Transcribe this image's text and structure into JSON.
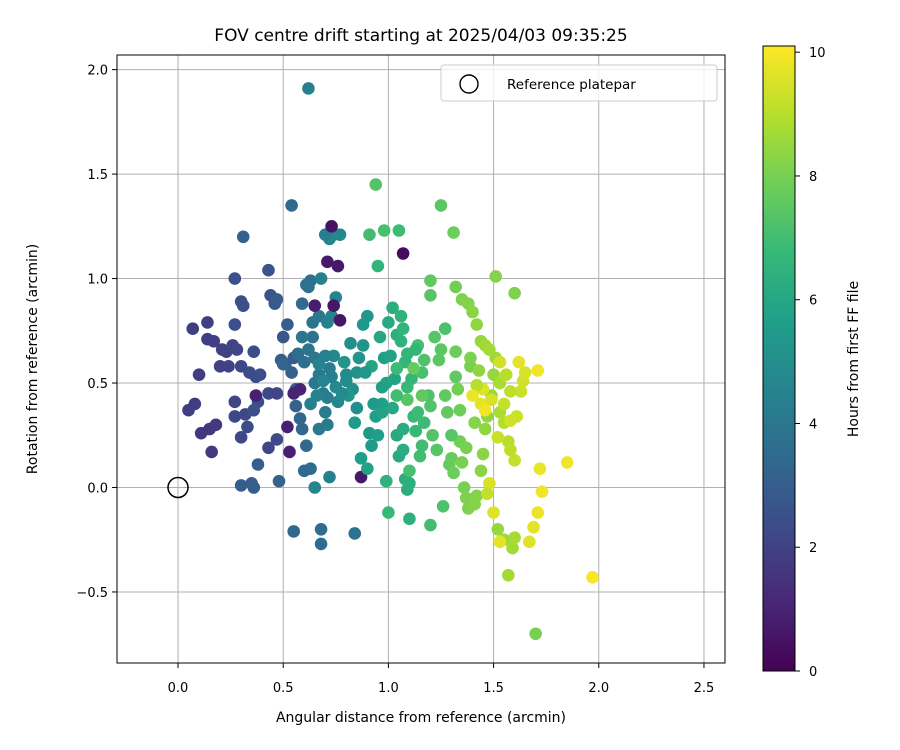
{
  "chart_data": {
    "type": "scatter",
    "title": "FOV centre drift starting at 2025/04/03 09:35:25",
    "xlabel": "Angular distance from reference (arcmin)",
    "ylabel": "Rotation from reference (arcmin)",
    "xlim": [
      -0.29,
      2.6
    ],
    "ylim": [
      -0.84,
      2.07
    ],
    "x_ticks": [
      0.0,
      0.5,
      1.0,
      1.5,
      2.0,
      2.5
    ],
    "x_tick_labels": [
      "0.0",
      "0.5",
      "1.0",
      "1.5",
      "2.0",
      "2.5"
    ],
    "y_ticks": [
      -0.5,
      0.0,
      0.5,
      1.0,
      1.5,
      2.0
    ],
    "y_tick_labels": [
      "−0.5",
      "0.0",
      "0.5",
      "1.0",
      "1.5",
      "2.0"
    ],
    "grid": true,
    "legend": {
      "position": "top-right",
      "entries": [
        "Reference platepar"
      ]
    },
    "reference_point": {
      "x": 0.0,
      "y": 0.0,
      "marker": "open-circle"
    },
    "colorbar": {
      "label": "Hours from first FF file",
      "range": [
        0,
        10.1
      ],
      "ticks": [
        0,
        2,
        4,
        6,
        8,
        10
      ],
      "tick_labels": [
        "0",
        "2",
        "4",
        "6",
        "8",
        "10"
      ],
      "colormap": [
        "#440154",
        "#482878",
        "#3e4989",
        "#31688e",
        "#26828e",
        "#1f9e89",
        "#35b779",
        "#6ece58",
        "#b5de2b",
        "#fde725"
      ]
    },
    "points": [
      [
        0.11,
        0.26,
        1.6
      ],
      [
        0.15,
        0.28,
        1.6
      ],
      [
        0.18,
        0.3,
        1.7
      ],
      [
        0.16,
        0.17,
        1.7
      ],
      [
        0.08,
        0.4,
        1.8
      ],
      [
        0.05,
        0.37,
        1.8
      ],
      [
        0.1,
        0.54,
        1.8
      ],
      [
        0.14,
        0.71,
        1.9
      ],
      [
        0.17,
        0.7,
        1.9
      ],
      [
        0.14,
        0.79,
        1.9
      ],
      [
        0.07,
        0.76,
        1.9
      ],
      [
        0.2,
        0.58,
        2.0
      ],
      [
        0.21,
        0.66,
        2.0
      ],
      [
        0.24,
        0.58,
        2.0
      ],
      [
        0.23,
        0.65,
        2.0
      ],
      [
        0.26,
        0.68,
        2.1
      ],
      [
        0.28,
        0.66,
        2.1
      ],
      [
        0.3,
        0.58,
        2.2
      ],
      [
        0.27,
        0.41,
        2.1
      ],
      [
        0.27,
        0.34,
        2.2
      ],
      [
        0.3,
        0.24,
        2.2
      ],
      [
        0.32,
        0.35,
        2.2
      ],
      [
        0.33,
        0.29,
        2.3
      ],
      [
        0.34,
        0.55,
        2.3
      ],
      [
        0.37,
        0.53,
        2.3
      ],
      [
        0.36,
        0.65,
        2.4
      ],
      [
        0.39,
        0.54,
        2.4
      ],
      [
        0.38,
        0.41,
        2.4
      ],
      [
        0.36,
        0.37,
        2.5
      ],
      [
        0.3,
        0.89,
        2.5
      ],
      [
        0.31,
        0.87,
        2.5
      ],
      [
        0.27,
        0.78,
        2.5
      ],
      [
        0.27,
        1.0,
        2.5
      ],
      [
        0.43,
        1.04,
        2.6
      ],
      [
        0.44,
        0.92,
        2.6
      ],
      [
        0.46,
        0.88,
        2.8
      ],
      [
        0.47,
        0.9,
        2.9
      ],
      [
        0.43,
        0.45,
        2.2
      ],
      [
        0.47,
        0.45,
        2.1
      ],
      [
        0.43,
        0.19,
        2.1
      ],
      [
        0.47,
        0.23,
        2.3
      ],
      [
        0.3,
        0.01,
        3.0
      ],
      [
        0.35,
        0.02,
        3.0
      ],
      [
        0.36,
        0.0,
        3.0
      ],
      [
        0.38,
        0.11,
        3.0
      ],
      [
        0.48,
        0.03,
        3.2
      ],
      [
        0.5,
        0.72,
        2.8
      ],
      [
        0.52,
        0.78,
        3.0
      ],
      [
        0.51,
        0.59,
        2.9
      ],
      [
        0.49,
        0.61,
        2.9
      ],
      [
        0.55,
        0.62,
        3.0
      ],
      [
        0.56,
        0.47,
        3.0
      ],
      [
        0.54,
        0.55,
        3.1
      ],
      [
        0.56,
        0.39,
        3.1
      ],
      [
        0.5,
        0.59,
        3.3
      ],
      [
        0.58,
        0.33,
        3.3
      ],
      [
        0.59,
        0.28,
        3.4
      ],
      [
        0.61,
        0.2,
        3.4
      ],
      [
        0.6,
        0.08,
        3.5
      ],
      [
        0.63,
        0.09,
        3.5
      ],
      [
        0.59,
        0.88,
        3.5
      ],
      [
        0.61,
        0.97,
        3.7
      ],
      [
        0.63,
        0.99,
        3.7
      ],
      [
        0.62,
        0.96,
        3.8
      ],
      [
        0.64,
        0.72,
        3.8
      ],
      [
        0.64,
        0.79,
        3.9
      ],
      [
        0.67,
        0.82,
        4.0
      ],
      [
        0.65,
        0.62,
        4.0
      ],
      [
        0.65,
        0.5,
        4.0
      ],
      [
        0.67,
        0.54,
        4.1
      ],
      [
        0.69,
        0.45,
        4.2
      ],
      [
        0.67,
        0.28,
        4.1
      ],
      [
        0.71,
        0.3,
        4.2
      ],
      [
        0.7,
        0.36,
        4.2
      ],
      [
        0.71,
        0.43,
        4.3
      ],
      [
        0.72,
        0.57,
        4.3
      ],
      [
        0.73,
        0.53,
        4.4
      ],
      [
        0.71,
        0.79,
        4.4
      ],
      [
        0.73,
        0.82,
        4.5
      ],
      [
        0.75,
        0.91,
        4.6
      ],
      [
        0.72,
        1.19,
        4.6
      ],
      [
        0.74,
        1.21,
        4.7
      ],
      [
        0.77,
        1.21,
        4.7
      ],
      [
        0.7,
        1.21,
        4.3
      ],
      [
        0.54,
        1.35,
        3.5
      ],
      [
        0.62,
        1.91,
        4.4
      ],
      [
        0.68,
        1.0,
        4.4
      ],
      [
        0.72,
        0.05,
        4.4
      ],
      [
        0.55,
        -0.21,
        3.4
      ],
      [
        0.68,
        -0.2,
        3.6
      ],
      [
        0.68,
        -0.27,
        3.6
      ],
      [
        0.84,
        -0.22,
        3.8
      ],
      [
        0.65,
        0.0,
        4.6
      ],
      [
        0.31,
        1.2,
        3.2
      ],
      [
        0.52,
        0.29,
        0.9
      ],
      [
        0.55,
        0.45,
        1.0
      ],
      [
        0.58,
        0.47,
        1.0
      ],
      [
        0.53,
        0.17,
        0.9
      ],
      [
        0.65,
        0.87,
        0.8
      ],
      [
        0.74,
        0.87,
        0.6
      ],
      [
        0.77,
        0.8,
        0.6
      ],
      [
        0.73,
        1.25,
        0.5
      ],
      [
        0.76,
        1.06,
        0.7
      ],
      [
        0.71,
        1.08,
        0.7
      ],
      [
        0.87,
        0.05,
        0.7
      ],
      [
        1.07,
        1.12,
        0.3
      ],
      [
        0.37,
        0.44,
        0.9
      ],
      [
        0.59,
        0.72,
        4.0
      ],
      [
        0.8,
        0.51,
        4.9
      ],
      [
        0.83,
        0.47,
        5.0
      ],
      [
        0.85,
        0.38,
        5.0
      ],
      [
        0.85,
        0.55,
        5.1
      ],
      [
        0.86,
        0.62,
        5.2
      ],
      [
        0.88,
        0.68,
        5.2
      ],
      [
        0.88,
        0.78,
        5.3
      ],
      [
        0.9,
        0.82,
        5.3
      ],
      [
        0.91,
        0.26,
        5.4
      ],
      [
        0.92,
        0.2,
        5.5
      ],
      [
        0.95,
        0.25,
        5.6
      ],
      [
        0.94,
        0.34,
        5.6
      ],
      [
        0.97,
        0.4,
        5.7
      ],
      [
        0.98,
        0.62,
        5.7
      ],
      [
        0.99,
        0.5,
        5.8
      ],
      [
        1.01,
        0.63,
        5.8
      ],
      [
        1.03,
        0.52,
        5.9
      ],
      [
        1.02,
        0.38,
        6.0
      ],
      [
        1.04,
        0.25,
        6.1
      ],
      [
        1.05,
        0.15,
        6.1
      ],
      [
        1.07,
        0.18,
        6.2
      ],
      [
        1.07,
        0.28,
        6.2
      ],
      [
        1.08,
        0.04,
        6.3
      ],
      [
        1.09,
        -0.01,
        6.3
      ],
      [
        1.1,
        0.02,
        6.4
      ],
      [
        1.1,
        -0.15,
        6.4
      ],
      [
        0.99,
        0.03,
        6.5
      ],
      [
        1.04,
        0.73,
        6.4
      ],
      [
        1.06,
        0.7,
        6.5
      ],
      [
        1.07,
        0.76,
        6.6
      ],
      [
        1.08,
        0.6,
        6.6
      ],
      [
        1.09,
        0.64,
        6.7
      ],
      [
        1.11,
        0.52,
        6.7
      ],
      [
        1.12,
        0.34,
        6.8
      ],
      [
        1.13,
        0.27,
        6.8
      ],
      [
        1.14,
        0.36,
        6.9
      ],
      [
        1.15,
        0.15,
        7.0
      ],
      [
        1.16,
        0.2,
        7.0
      ],
      [
        1.14,
        0.68,
        7.1
      ],
      [
        1.16,
        0.55,
        7.1
      ],
      [
        1.17,
        0.61,
        7.2
      ],
      [
        1.19,
        0.44,
        7.2
      ],
      [
        1.2,
        0.39,
        7.3
      ],
      [
        1.21,
        0.25,
        7.3
      ],
      [
        1.22,
        0.72,
        7.4
      ],
      [
        1.23,
        0.18,
        7.4
      ],
      [
        1.24,
        0.61,
        7.5
      ],
      [
        1.25,
        0.66,
        7.5
      ],
      [
        1.27,
        0.44,
        7.6
      ],
      [
        1.28,
        0.36,
        7.6
      ],
      [
        1.29,
        0.11,
        7.7
      ],
      [
        1.3,
        0.14,
        7.7
      ],
      [
        1.31,
        0.07,
        7.8
      ],
      [
        1.32,
        0.65,
        7.8
      ],
      [
        1.33,
        0.47,
        7.9
      ],
      [
        1.34,
        0.22,
        7.9
      ],
      [
        1.35,
        0.12,
        8.0
      ],
      [
        1.36,
        0.0,
        8.0
      ],
      [
        1.37,
        -0.05,
        8.1
      ],
      [
        1.38,
        -0.1,
        8.1
      ],
      [
        1.41,
        -0.08,
        8.2
      ],
      [
        1.42,
        -0.04,
        8.2
      ],
      [
        1.44,
        0.08,
        8.3
      ],
      [
        1.45,
        0.16,
        8.3
      ],
      [
        1.46,
        0.28,
        8.4
      ],
      [
        1.47,
        0.34,
        8.4
      ],
      [
        1.49,
        0.44,
        8.5
      ],
      [
        1.5,
        0.54,
        8.5
      ],
      [
        1.51,
        0.62,
        8.6
      ],
      [
        1.52,
        -0.2,
        8.5
      ],
      [
        1.55,
        -0.25,
        8.6
      ],
      [
        1.57,
        -0.42,
        8.7
      ],
      [
        1.59,
        -0.29,
        8.7
      ],
      [
        1.6,
        -0.24,
        8.8
      ],
      [
        1.7,
        -0.7,
        8.0
      ],
      [
        1.51,
        1.01,
        8.2
      ],
      [
        1.6,
        0.93,
        8.1
      ],
      [
        1.25,
        1.35,
        7.5
      ],
      [
        1.31,
        1.22,
        7.8
      ],
      [
        0.94,
        1.45,
        7.3
      ],
      [
        0.98,
        1.23,
        7.1
      ],
      [
        0.91,
        1.21,
        7.0
      ],
      [
        1.05,
        1.23,
        6.9
      ],
      [
        0.95,
        1.06,
        6.6
      ],
      [
        1.2,
        0.99,
        7.6
      ],
      [
        1.2,
        0.92,
        7.4
      ],
      [
        1.27,
        0.76,
        7.2
      ],
      [
        1.32,
        0.96,
        7.9
      ],
      [
        1.35,
        0.9,
        8.1
      ],
      [
        1.38,
        0.88,
        8.2
      ],
      [
        1.4,
        0.84,
        8.3
      ],
      [
        1.42,
        0.78,
        8.4
      ],
      [
        1.44,
        0.7,
        8.5
      ],
      [
        1.46,
        0.68,
        8.6
      ],
      [
        1.48,
        0.66,
        8.7
      ],
      [
        1.53,
        0.36,
        8.8
      ],
      [
        1.55,
        0.31,
        8.9
      ],
      [
        1.57,
        0.22,
        9.0
      ],
      [
        1.58,
        0.18,
        9.1
      ],
      [
        1.6,
        0.13,
        9.2
      ],
      [
        1.61,
        0.34,
        9.3
      ],
      [
        1.63,
        0.46,
        9.3
      ],
      [
        1.64,
        0.51,
        9.4
      ],
      [
        1.65,
        0.55,
        9.5
      ],
      [
        1.53,
        0.6,
        9.4
      ],
      [
        1.49,
        0.42,
        9.5
      ],
      [
        1.45,
        0.47,
        9.6
      ],
      [
        1.44,
        0.4,
        9.7
      ],
      [
        1.48,
        0.02,
        9.5
      ],
      [
        1.5,
        -0.12,
        9.6
      ],
      [
        1.53,
        -0.26,
        9.7
      ],
      [
        1.67,
        -0.26,
        9.6
      ],
      [
        1.69,
        -0.19,
        9.7
      ],
      [
        1.71,
        -0.12,
        9.8
      ],
      [
        1.72,
        0.09,
        9.8
      ],
      [
        1.73,
        -0.02,
        9.9
      ],
      [
        1.71,
        0.56,
        9.9
      ],
      [
        1.85,
        0.12,
        9.9
      ],
      [
        1.97,
        -0.43,
        10.0
      ],
      [
        1.62,
        0.6,
        9.7
      ],
      [
        0.79,
        0.6,
        5.2
      ],
      [
        0.81,
        0.44,
        5.4
      ],
      [
        0.84,
        0.31,
        5.5
      ],
      [
        0.87,
        0.14,
        5.6
      ],
      [
        0.9,
        0.09,
        5.8
      ],
      [
        0.92,
        0.58,
        5.9
      ],
      [
        0.96,
        0.72,
        6.0
      ],
      [
        1.0,
        0.79,
        6.1
      ],
      [
        1.02,
        0.86,
        6.3
      ],
      [
        1.06,
        0.82,
        6.5
      ],
      [
        1.13,
        0.66,
        6.7
      ],
      [
        1.17,
        0.31,
        6.9
      ],
      [
        1.2,
        -0.18,
        7.0
      ],
      [
        1.26,
        -0.09,
        7.2
      ],
      [
        1.3,
        0.25,
        7.4
      ],
      [
        1.32,
        0.53,
        7.6
      ],
      [
        1.34,
        0.37,
        7.8
      ],
      [
        1.39,
        0.58,
        8.0
      ],
      [
        1.41,
        0.31,
        8.2
      ],
      [
        1.43,
        0.56,
        8.4
      ],
      [
        1.37,
        0.19,
        8.0
      ],
      [
        1.39,
        0.62,
        8.1
      ],
      [
        0.82,
        0.69,
        5.0
      ],
      [
        0.89,
        0.55,
        5.3
      ],
      [
        0.93,
        0.4,
        5.5
      ],
      [
        0.97,
        0.48,
        5.7
      ],
      [
        1.0,
        -0.12,
        6.8
      ],
      [
        1.1,
        0.08,
        7.1
      ],
      [
        0.97,
        0.36,
        5.8
      ],
      [
        0.63,
        0.4,
        4.4
      ],
      [
        0.66,
        0.44,
        4.5
      ],
      [
        0.69,
        0.51,
        4.6
      ],
      [
        0.76,
        0.41,
        4.7
      ],
      [
        0.74,
        0.63,
        4.7
      ],
      [
        0.78,
        0.45,
        4.8
      ],
      [
        0.6,
        0.6,
        3.7
      ],
      [
        0.57,
        0.64,
        3.6
      ],
      [
        0.62,
        0.66,
        3.9
      ],
      [
        0.7,
        0.63,
        4.5
      ],
      [
        0.67,
        0.59,
        4.6
      ],
      [
        0.8,
        0.54,
        4.9
      ],
      [
        0.75,
        0.48,
        4.8
      ],
      [
        1.53,
        0.5,
        8.8
      ],
      [
        1.56,
        0.54,
        9.0
      ],
      [
        1.58,
        0.46,
        9.1
      ],
      [
        1.55,
        0.4,
        9.2
      ],
      [
        1.58,
        0.32,
        9.4
      ],
      [
        1.52,
        0.24,
        9.3
      ],
      [
        1.47,
        -0.03,
        9.2
      ],
      [
        1.42,
        0.49,
        9.0
      ],
      [
        1.4,
        0.44,
        9.8
      ],
      [
        1.46,
        0.37,
        9.9
      ],
      [
        1.16,
        0.44,
        7.6
      ],
      [
        1.09,
        0.42,
        7.4
      ],
      [
        1.12,
        0.57,
        7.7
      ],
      [
        1.04,
        0.44,
        7.0
      ],
      [
        1.09,
        0.48,
        6.8
      ],
      [
        1.04,
        0.57,
        6.9
      ]
    ]
  }
}
